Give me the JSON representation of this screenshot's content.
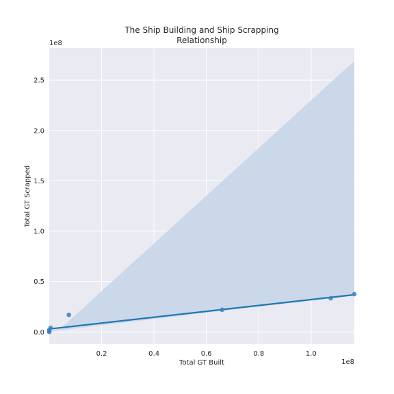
{
  "chart_data": {
    "type": "scatter",
    "title_lines": [
      "The Ship Building and Ship Scrapping",
      "Relationship"
    ],
    "xlabel": "Total GT Built",
    "ylabel": "Total GT Scrapped",
    "x_offset_text": "1e8",
    "y_offset_text": "1e8",
    "xlim": [
      0,
      1.165
    ],
    "ylim": [
      -0.12,
      2.82
    ],
    "x_ticks": [
      {
        "value": 0.2,
        "label": "0.2"
      },
      {
        "value": 0.4,
        "label": "0.4"
      },
      {
        "value": 0.6,
        "label": "0.6"
      },
      {
        "value": 0.8,
        "label": "0.8"
      },
      {
        "value": 1.0,
        "label": "1.0"
      }
    ],
    "y_ticks": [
      {
        "value": 0.0,
        "label": "0.0"
      },
      {
        "value": 0.5,
        "label": "0.5"
      },
      {
        "value": 1.0,
        "label": "1.0"
      },
      {
        "value": 1.5,
        "label": "1.5"
      },
      {
        "value": 2.0,
        "label": "2.0"
      },
      {
        "value": 2.5,
        "label": "2.5"
      }
    ],
    "grid": true,
    "points": [
      {
        "x": 0.0,
        "y": 0.0
      },
      {
        "x": 0.0,
        "y": 0.01
      },
      {
        "x": 0.0,
        "y": 0.02
      },
      {
        "x": 0.005,
        "y": 0.04
      },
      {
        "x": 0.075,
        "y": 0.17
      },
      {
        "x": 0.66,
        "y": 0.22
      },
      {
        "x": 1.075,
        "y": 0.335
      },
      {
        "x": 1.165,
        "y": 0.375
      }
    ],
    "regression_line": [
      {
        "x": 0.0,
        "y": 0.03
      },
      {
        "x": 1.165,
        "y": 0.37
      }
    ],
    "confidence_band": {
      "upper": [
        {
          "x": 0.0,
          "y": 0.0
        },
        {
          "x": 0.05,
          "y": 0.05
        },
        {
          "x": 1.165,
          "y": 2.69
        }
      ],
      "lower": [
        {
          "x": 0.0,
          "y": 0.0
        },
        {
          "x": 0.05,
          "y": 0.02
        },
        {
          "x": 0.66,
          "y": 0.21
        },
        {
          "x": 1.165,
          "y": 0.36
        }
      ]
    },
    "colors": {
      "background": "#eaeaf2",
      "grid": "#ffffff",
      "line": "#1f77b4",
      "points": "#3a80c0",
      "band": "#c7d6e8"
    }
  }
}
